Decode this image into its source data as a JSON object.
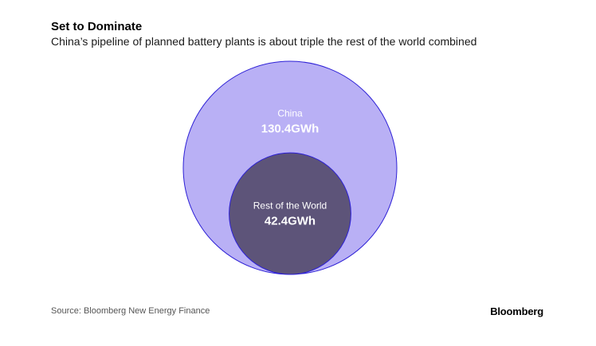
{
  "header": {
    "title": "Set to Dominate",
    "subtitle": "China’s pipeline of planned battery plants is about triple the rest of the world combined"
  },
  "footer": {
    "source": "Source: Bloomberg New Energy Finance",
    "logo": "Bloomberg"
  },
  "chart_data": {
    "type": "bubble",
    "title": "Set to Dominate",
    "subtitle": "China’s pipeline of planned battery plants is about triple the rest of the world combined",
    "unit": "GWh",
    "circles": [
      {
        "name": "China",
        "value": 130.4,
        "value_label": "130.4GWh",
        "fill": "#b9b0f5",
        "stroke": "#2d20d6",
        "label_color": "#ffffff"
      },
      {
        "name": "Rest of the World",
        "value": 42.4,
        "value_label": "42.4GWh",
        "fill": "#5d5479",
        "stroke": "#2d20d6",
        "label_color": "#ffffff"
      }
    ],
    "layout": "nested-bottom-aligned"
  }
}
